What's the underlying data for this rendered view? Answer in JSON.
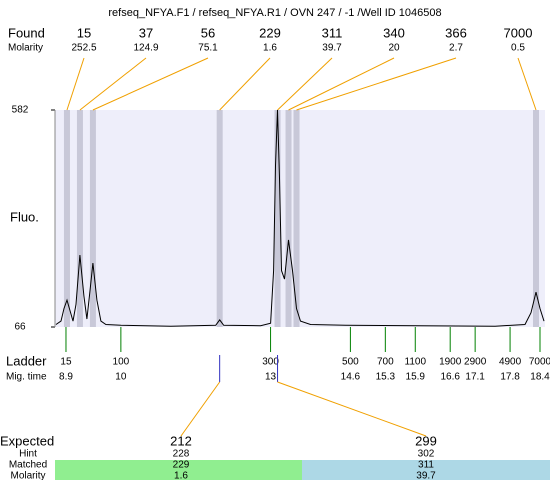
{
  "chart_data": {
    "type": "electropherogram",
    "title": "refseq_NFYA.F1 / refseq_NFYA.R1 / OVN 247 / -1 /Well ID 1046508",
    "y_label": "Fluo.",
    "ylim": [
      66,
      582
    ],
    "yticks": [
      66,
      582
    ],
    "xlim": [
      8.68,
      18.5
    ],
    "found": {
      "label": "Found",
      "molarity_label": "Molarity",
      "sizes": [
        15,
        37,
        56,
        229,
        311,
        340,
        366,
        7000
      ],
      "molarity": [
        252.5,
        124.9,
        75.1,
        1.6,
        39.7,
        20,
        2.7,
        0.5
      ],
      "times": [
        8.92,
        9.18,
        9.44,
        11.98,
        13.14,
        13.36,
        13.52,
        18.32
      ],
      "band_color": "#c8c8d8",
      "line_color": "#f0a000"
    },
    "trace": {
      "color": "#000000",
      "x": [
        8.7,
        8.8,
        8.86,
        8.92,
        8.98,
        9.04,
        9.1,
        9.18,
        9.26,
        9.32,
        9.38,
        9.44,
        9.52,
        9.6,
        9.7,
        10.0,
        11.0,
        11.9,
        11.98,
        12.06,
        12.8,
        13.0,
        13.06,
        13.1,
        13.14,
        13.18,
        13.22,
        13.28,
        13.36,
        13.44,
        13.52,
        13.6,
        13.8,
        14.5,
        17.5,
        18.1,
        18.22,
        18.32,
        18.4,
        18.48
      ],
      "values": [
        72,
        80,
        110,
        130,
        105,
        80,
        120,
        237,
        140,
        85,
        150,
        218,
        130,
        80,
        72,
        70,
        68,
        70,
        83,
        70,
        69,
        75,
        200,
        450,
        582,
        420,
        200,
        180,
        273,
        200,
        110,
        80,
        72,
        70,
        68,
        72,
        100,
        149,
        110,
        80
      ]
    },
    "ladder": {
      "label": "Ladder",
      "time_label": "Mig. time",
      "color": "#008000",
      "sizes": [
        15,
        100,
        300,
        500,
        700,
        1100,
        1900,
        2900,
        4900,
        7000
      ],
      "times": [
        8.9,
        10,
        13,
        14.6,
        15.3,
        15.9,
        16.6,
        17.1,
        17.8,
        18.4
      ]
    },
    "expected": {
      "label": "Expected",
      "hint_label": "Hint",
      "matched_label": "Matched",
      "molarity_label": "Molarity",
      "sizes": [
        212,
        299
      ],
      "hint": [
        228,
        302
      ],
      "matched": [
        229,
        311
      ],
      "molarity": [
        1.6,
        39.7
      ],
      "colors": [
        "#90ee90",
        "#add8e6"
      ],
      "marker_color": "#3030c0"
    }
  }
}
